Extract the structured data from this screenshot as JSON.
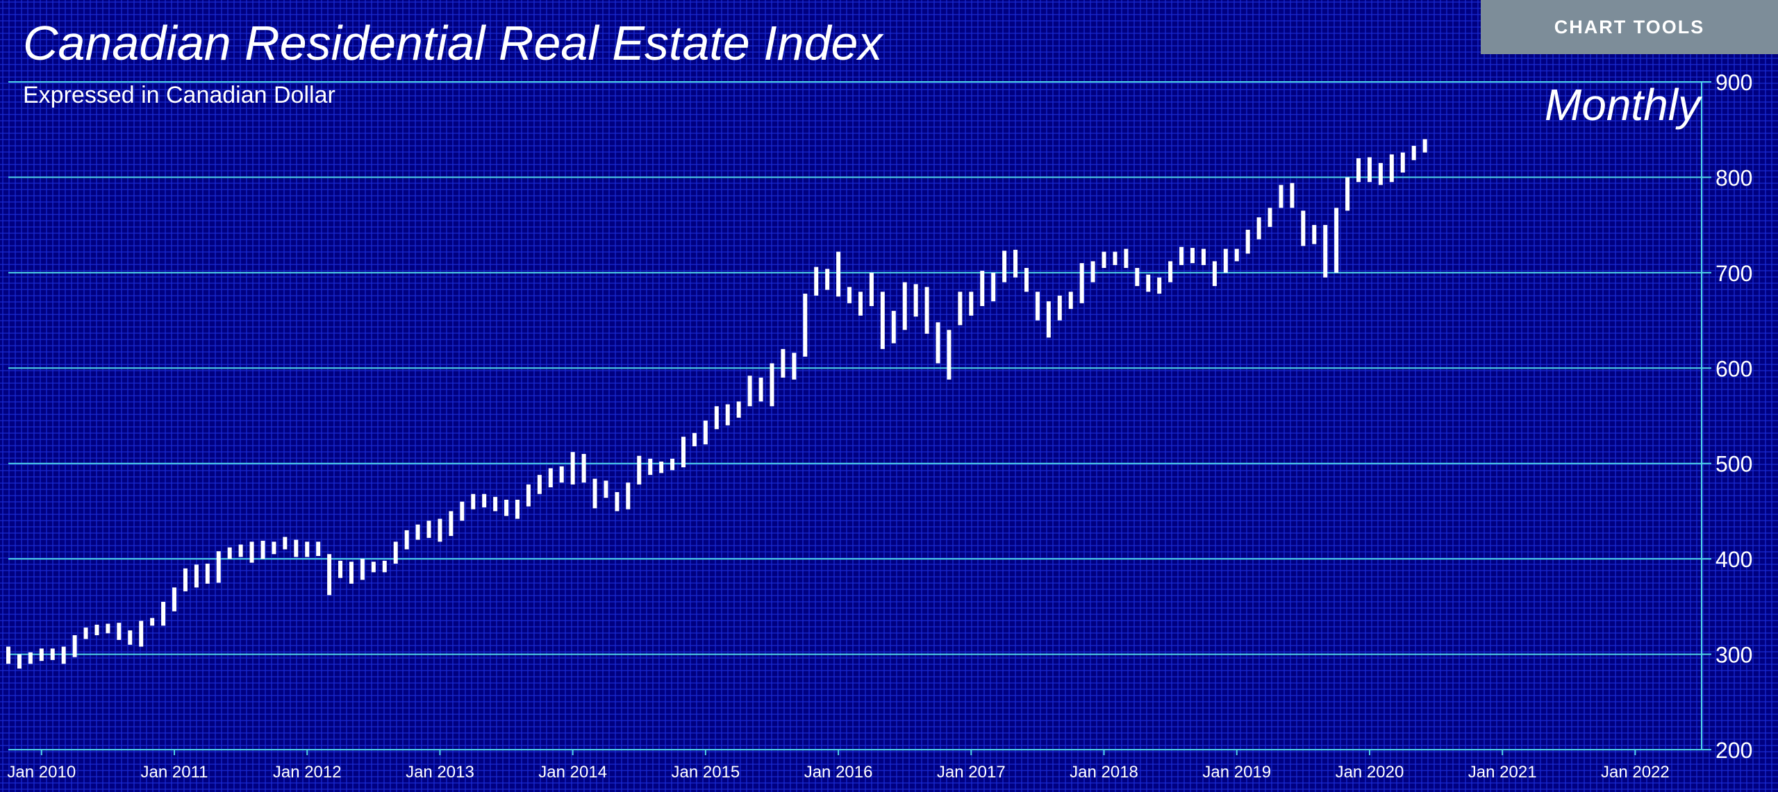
{
  "header": {
    "title": "Canadian Residential Real Estate Index",
    "subtitle": "Expressed in Canadian Dollar",
    "period": "Monthly"
  },
  "toolbar": {
    "chart_tools_label": "CHART TOOLS"
  },
  "colors": {
    "background": "#000080",
    "minor_grid": "#1a2ad0",
    "major_grid": "#4fd6e6",
    "candle": "#ffffff",
    "button": "#7d8d99"
  },
  "chart_data": {
    "type": "candlestick",
    "frequency": "Monthly",
    "x_axis": {
      "tick_labels": [
        "Jan 2010",
        "Jan 2011",
        "Jan 2012",
        "Jan 2013",
        "Jan 2014",
        "Jan 2015",
        "Jan 2016",
        "Jan 2017",
        "Jan 2018",
        "Jan 2019",
        "Jan 2020",
        "Jan 2021",
        "Jan 2022"
      ],
      "range": [
        "2009-10",
        "2022-07"
      ]
    },
    "y_axis": {
      "position": "right",
      "ticks": [
        200,
        300,
        400,
        500,
        600,
        700,
        800,
        900
      ],
      "range": [
        200,
        900
      ]
    },
    "grid": true,
    "series": [
      {
        "values": [
          {
            "date": "2009-10",
            "high": 308,
            "low": 290
          },
          {
            "date": "2009-11",
            "high": 300,
            "low": 285
          },
          {
            "date": "2009-12",
            "high": 302,
            "low": 290
          },
          {
            "date": "2010-01",
            "high": 306,
            "low": 293
          },
          {
            "date": "2010-02",
            "high": 306,
            "low": 294
          },
          {
            "date": "2010-03",
            "high": 308,
            "low": 290
          },
          {
            "date": "2010-04",
            "high": 320,
            "low": 297
          },
          {
            "date": "2010-05",
            "high": 328,
            "low": 316
          },
          {
            "date": "2010-06",
            "high": 331,
            "low": 320
          },
          {
            "date": "2010-07",
            "high": 332,
            "low": 322
          },
          {
            "date": "2010-08",
            "high": 333,
            "low": 315
          },
          {
            "date": "2010-09",
            "high": 325,
            "low": 310
          },
          {
            "date": "2010-10",
            "high": 335,
            "low": 308
          },
          {
            "date": "2010-11",
            "high": 338,
            "low": 330
          },
          {
            "date": "2010-12",
            "high": 355,
            "low": 330
          },
          {
            "date": "2011-01",
            "high": 370,
            "low": 345
          },
          {
            "date": "2011-02",
            "high": 390,
            "low": 366
          },
          {
            "date": "2011-03",
            "high": 394,
            "low": 370
          },
          {
            "date": "2011-04",
            "high": 395,
            "low": 374
          },
          {
            "date": "2011-05",
            "high": 408,
            "low": 375
          },
          {
            "date": "2011-06",
            "high": 412,
            "low": 400
          },
          {
            "date": "2011-07",
            "high": 415,
            "low": 402
          },
          {
            "date": "2011-08",
            "high": 418,
            "low": 396
          },
          {
            "date": "2011-09",
            "high": 419,
            "low": 400
          },
          {
            "date": "2011-10",
            "high": 418,
            "low": 405
          },
          {
            "date": "2011-11",
            "high": 423,
            "low": 410
          },
          {
            "date": "2011-12",
            "high": 420,
            "low": 402
          },
          {
            "date": "2012-01",
            "high": 418,
            "low": 402
          },
          {
            "date": "2012-02",
            "high": 418,
            "low": 403
          },
          {
            "date": "2012-03",
            "high": 405,
            "low": 362
          },
          {
            "date": "2012-04",
            "high": 398,
            "low": 380
          },
          {
            "date": "2012-05",
            "high": 397,
            "low": 374
          },
          {
            "date": "2012-06",
            "high": 400,
            "low": 378
          },
          {
            "date": "2012-07",
            "high": 397,
            "low": 386
          },
          {
            "date": "2012-08",
            "high": 398,
            "low": 386
          },
          {
            "date": "2012-09",
            "high": 418,
            "low": 395
          },
          {
            "date": "2012-10",
            "high": 430,
            "low": 410
          },
          {
            "date": "2012-11",
            "high": 436,
            "low": 420
          },
          {
            "date": "2012-12",
            "high": 440,
            "low": 422
          },
          {
            "date": "2013-01",
            "high": 442,
            "low": 418
          },
          {
            "date": "2013-02",
            "high": 450,
            "low": 424
          },
          {
            "date": "2013-03",
            "high": 460,
            "low": 440
          },
          {
            "date": "2013-04",
            "high": 468,
            "low": 452
          },
          {
            "date": "2013-05",
            "high": 468,
            "low": 454
          },
          {
            "date": "2013-06",
            "high": 465,
            "low": 450
          },
          {
            "date": "2013-07",
            "high": 462,
            "low": 445
          },
          {
            "date": "2013-08",
            "high": 462,
            "low": 442
          },
          {
            "date": "2013-09",
            "high": 478,
            "low": 455
          },
          {
            "date": "2013-10",
            "high": 488,
            "low": 468
          },
          {
            "date": "2013-11",
            "high": 495,
            "low": 475
          },
          {
            "date": "2013-12",
            "high": 497,
            "low": 480
          },
          {
            "date": "2014-01",
            "high": 512,
            "low": 478
          },
          {
            "date": "2014-02",
            "high": 510,
            "low": 480
          },
          {
            "date": "2014-03",
            "high": 484,
            "low": 453
          },
          {
            "date": "2014-04",
            "high": 482,
            "low": 464
          },
          {
            "date": "2014-05",
            "high": 470,
            "low": 450
          },
          {
            "date": "2014-06",
            "high": 480,
            "low": 452
          },
          {
            "date": "2014-07",
            "high": 508,
            "low": 478
          },
          {
            "date": "2014-08",
            "high": 505,
            "low": 488
          },
          {
            "date": "2014-09",
            "high": 502,
            "low": 490
          },
          {
            "date": "2014-10",
            "high": 505,
            "low": 493
          },
          {
            "date": "2014-11",
            "high": 528,
            "low": 496
          },
          {
            "date": "2014-12",
            "high": 532,
            "low": 518
          },
          {
            "date": "2015-01",
            "high": 545,
            "low": 520
          },
          {
            "date": "2015-02",
            "high": 560,
            "low": 536
          },
          {
            "date": "2015-03",
            "high": 562,
            "low": 540
          },
          {
            "date": "2015-04",
            "high": 565,
            "low": 548
          },
          {
            "date": "2015-05",
            "high": 592,
            "low": 560
          },
          {
            "date": "2015-06",
            "high": 590,
            "low": 565
          },
          {
            "date": "2015-07",
            "high": 605,
            "low": 560
          },
          {
            "date": "2015-08",
            "high": 620,
            "low": 590
          },
          {
            "date": "2015-09",
            "high": 616,
            "low": 588
          },
          {
            "date": "2015-10",
            "high": 678,
            "low": 612
          },
          {
            "date": "2015-11",
            "high": 706,
            "low": 676
          },
          {
            "date": "2015-12",
            "high": 704,
            "low": 682
          },
          {
            "date": "2016-01",
            "high": 722,
            "low": 675
          },
          {
            "date": "2016-02",
            "high": 685,
            "low": 668
          },
          {
            "date": "2016-03",
            "high": 680,
            "low": 655
          },
          {
            "date": "2016-04",
            "high": 700,
            "low": 665
          },
          {
            "date": "2016-05",
            "high": 680,
            "low": 620
          },
          {
            "date": "2016-06",
            "high": 660,
            "low": 626
          },
          {
            "date": "2016-07",
            "high": 690,
            "low": 640
          },
          {
            "date": "2016-08",
            "high": 688,
            "low": 654
          },
          {
            "date": "2016-09",
            "high": 685,
            "low": 636
          },
          {
            "date": "2016-10",
            "high": 648,
            "low": 605
          },
          {
            "date": "2016-11",
            "high": 640,
            "low": 588
          },
          {
            "date": "2016-12",
            "high": 680,
            "low": 645
          },
          {
            "date": "2017-01",
            "high": 680,
            "low": 655
          },
          {
            "date": "2017-02",
            "high": 702,
            "low": 665
          },
          {
            "date": "2017-03",
            "high": 700,
            "low": 670
          },
          {
            "date": "2017-04",
            "high": 723,
            "low": 690
          },
          {
            "date": "2017-05",
            "high": 724,
            "low": 695
          },
          {
            "date": "2017-06",
            "high": 705,
            "low": 680
          },
          {
            "date": "2017-07",
            "high": 680,
            "low": 650
          },
          {
            "date": "2017-08",
            "high": 670,
            "low": 632
          },
          {
            "date": "2017-09",
            "high": 676,
            "low": 650
          },
          {
            "date": "2017-10",
            "high": 680,
            "low": 662
          },
          {
            "date": "2017-11",
            "high": 710,
            "low": 668
          },
          {
            "date": "2017-12",
            "high": 712,
            "low": 690
          },
          {
            "date": "2018-01",
            "high": 722,
            "low": 705
          },
          {
            "date": "2018-02",
            "high": 722,
            "low": 708
          },
          {
            "date": "2018-03",
            "high": 725,
            "low": 705
          },
          {
            "date": "2018-04",
            "high": 705,
            "low": 686
          },
          {
            "date": "2018-05",
            "high": 698,
            "low": 680
          },
          {
            "date": "2018-06",
            "high": 695,
            "low": 678
          },
          {
            "date": "2018-07",
            "high": 712,
            "low": 690
          },
          {
            "date": "2018-08",
            "high": 727,
            "low": 708
          },
          {
            "date": "2018-09",
            "high": 726,
            "low": 710
          },
          {
            "date": "2018-10",
            "high": 725,
            "low": 708
          },
          {
            "date": "2018-11",
            "high": 712,
            "low": 686
          },
          {
            "date": "2018-12",
            "high": 725,
            "low": 700
          },
          {
            "date": "2019-01",
            "high": 725,
            "low": 712
          },
          {
            "date": "2019-02",
            "high": 745,
            "low": 720
          },
          {
            "date": "2019-03",
            "high": 758,
            "low": 735
          },
          {
            "date": "2019-04",
            "high": 768,
            "low": 748
          },
          {
            "date": "2019-05",
            "high": 792,
            "low": 768
          },
          {
            "date": "2019-06",
            "high": 794,
            "low": 768
          },
          {
            "date": "2019-07",
            "high": 765,
            "low": 728
          },
          {
            "date": "2019-08",
            "high": 750,
            "low": 730
          },
          {
            "date": "2019-09",
            "high": 750,
            "low": 695
          },
          {
            "date": "2019-10",
            "high": 768,
            "low": 700
          },
          {
            "date": "2019-11",
            "high": 800,
            "low": 765
          },
          {
            "date": "2019-12",
            "high": 820,
            "low": 795
          },
          {
            "date": "2020-01",
            "high": 821,
            "low": 795
          },
          {
            "date": "2020-02",
            "high": 815,
            "low": 792
          },
          {
            "date": "2020-03",
            "high": 824,
            "low": 795
          },
          {
            "date": "2020-04",
            "high": 826,
            "low": 805
          },
          {
            "date": "2020-05",
            "high": 833,
            "low": 818
          },
          {
            "date": "2020-06",
            "high": 840,
            "low": 826
          }
        ]
      }
    ]
  }
}
